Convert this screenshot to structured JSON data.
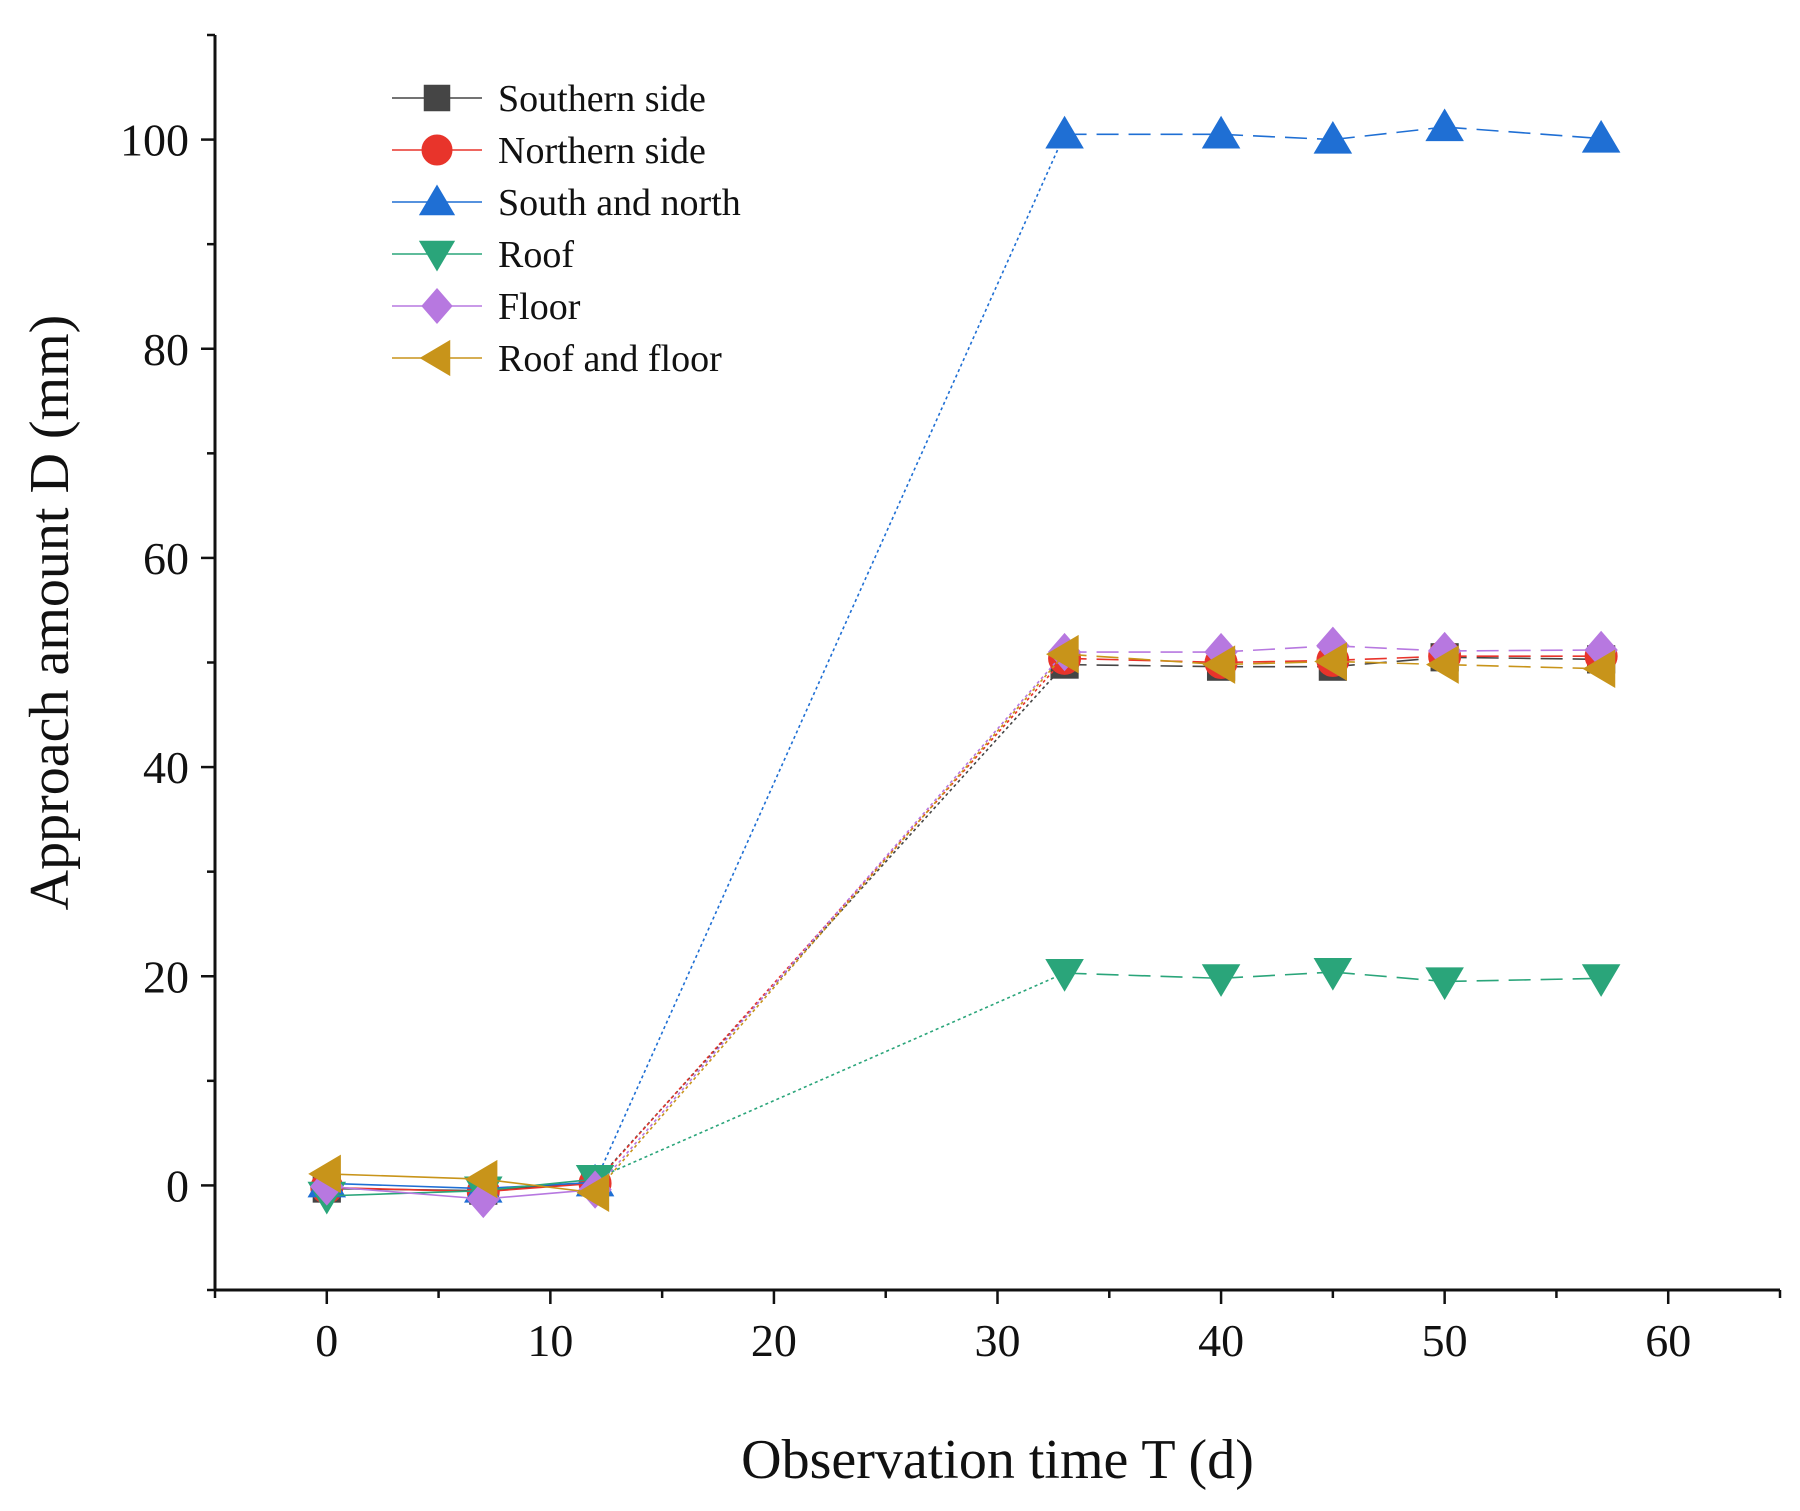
{
  "chart_data": {
    "type": "line",
    "title": "",
    "xlabel": "Observation time T (d)",
    "ylabel": "Approach amount D (mm)",
    "xlim": [
      -5,
      65
    ],
    "ylim": [
      -10,
      110
    ],
    "xticks": [
      0,
      10,
      20,
      30,
      40,
      50,
      60
    ],
    "yticks": [
      0,
      20,
      40,
      60,
      80,
      100
    ],
    "xtick_labels": [
      "0",
      "10",
      "20",
      "30",
      "40",
      "50",
      "60"
    ],
    "ytick_labels": [
      "0",
      "20",
      "40",
      "60",
      "80",
      "100"
    ],
    "grid": false,
    "legend_position": "top-left",
    "x": [
      0,
      7,
      12,
      33,
      40,
      45,
      50,
      57
    ],
    "series": [
      {
        "name": "Southern side",
        "color": "#454545",
        "marker": "square",
        "values": [
          -0.3,
          -0.5,
          0.3,
          49.8,
          49.6,
          49.6,
          50.5,
          50.3
        ]
      },
      {
        "name": "Northern side",
        "color": "#e8342b",
        "marker": "circle",
        "values": [
          -0.2,
          -0.6,
          0.2,
          50.4,
          50.0,
          50.2,
          50.6,
          50.6
        ]
      },
      {
        "name": "South and north",
        "color": "#1f6fd4",
        "marker": "triangle-up",
        "values": [
          0.2,
          -0.3,
          0.3,
          100.5,
          100.5,
          100.0,
          101.2,
          100.1
        ]
      },
      {
        "name": "Roof",
        "color": "#2aa57a",
        "marker": "triangle-down",
        "values": [
          -1.0,
          -0.5,
          0.6,
          20.3,
          19.8,
          20.4,
          19.5,
          19.8
        ]
      },
      {
        "name": "Floor",
        "color": "#b778e0",
        "marker": "diamond",
        "values": [
          -0.1,
          -1.3,
          -0.4,
          51.0,
          51.0,
          51.6,
          51.1,
          51.2
        ]
      },
      {
        "name": "Roof and floor",
        "color": "#c8941a",
        "marker": "triangle-left",
        "values": [
          1.1,
          0.6,
          -0.7,
          50.8,
          49.8,
          50.1,
          49.8,
          49.4
        ]
      }
    ]
  }
}
